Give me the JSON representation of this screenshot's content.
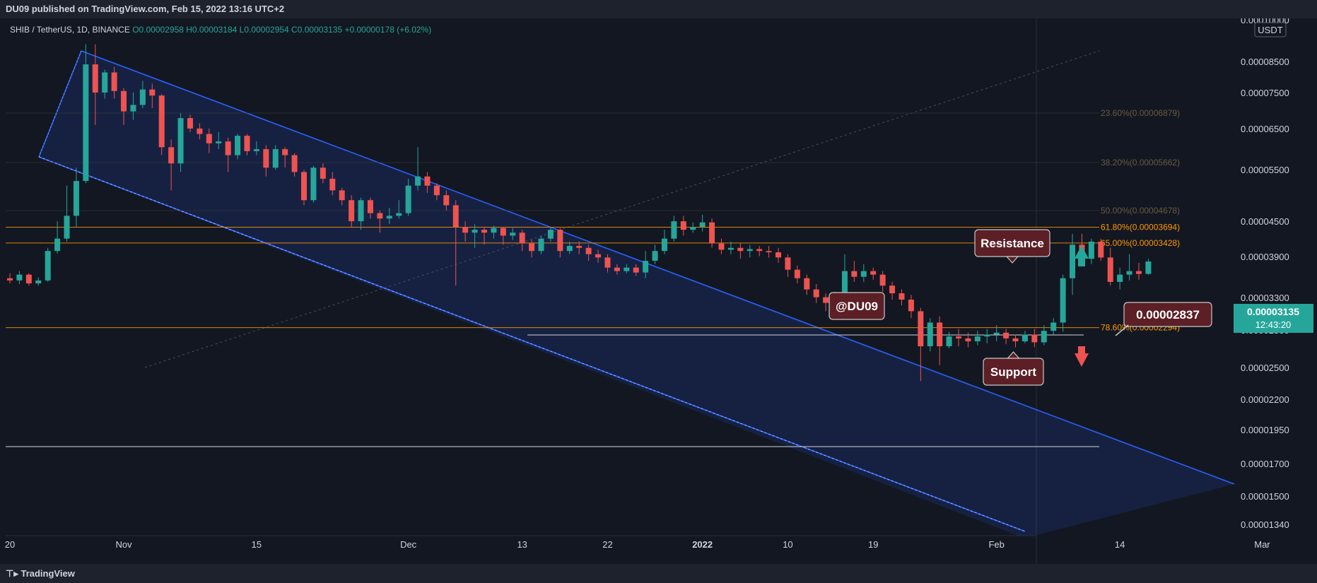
{
  "header": {
    "published": "DU09 published on TradingView.com, Feb 15, 2022 13:16 UTC+2"
  },
  "legend": {
    "symbol": "SHIB / TetherUS, 1D, BINANCE",
    "ohlc": "O0.00002958 H0.00003184 L0.00002954 C0.00003135 +0.00000178 (+6.02%)"
  },
  "footer": {
    "logo": "TradingView"
  },
  "annotations": {
    "resistance": "Resistance",
    "support": "Support",
    "author": "@DU09",
    "target_price": "0.00002837",
    "last_price": "0.00003135",
    "countdown": "12:43:20",
    "currency": "USDT"
  },
  "colors": {
    "background": "#131722",
    "up": "#26a69a",
    "down": "#ef5350",
    "channel": "#2962ff",
    "fib": "#ff9800",
    "label_fill": "#5c1f26"
  },
  "chart_data": {
    "type": "candlestick",
    "y_scale": "log",
    "y_ticks": [
      "0.00010000",
      "0.00008500",
      "0.00007500",
      "0.00006500",
      "0.00005500",
      "0.00004500",
      "0.00003900",
      "0.00003300",
      "0.00002800",
      "0.00002500",
      "0.00002200",
      "0.00001950",
      "0.00001700",
      "0.00001500",
      "0.00001340"
    ],
    "x_ticks": [
      {
        "date": "2021-10-20",
        "label": "20"
      },
      {
        "date": "2021-11-01",
        "label": "Nov"
      },
      {
        "date": "2021-11-15",
        "label": "15"
      },
      {
        "date": "2021-12-01",
        "label": "Dec"
      },
      {
        "date": "2021-12-13",
        "label": "13"
      },
      {
        "date": "2021-12-22",
        "label": "22"
      },
      {
        "date": "2022-01-01",
        "label": "2022"
      },
      {
        "date": "2022-01-10",
        "label": "10"
      },
      {
        "date": "2022-01-19",
        "label": "19"
      },
      {
        "date": "2022-02-01",
        "label": "Feb"
      },
      {
        "date": "2022-02-14",
        "label": "14"
      },
      {
        "date": "2022-03-01",
        "label": "Mar"
      }
    ],
    "fib_levels": [
      {
        "label": "23.60%(0.00006879)",
        "value": 6.879e-05
      },
      {
        "label": "38.20%(0.00005662)",
        "value": 5.662e-05
      },
      {
        "label": "50.00%(0.00004678)",
        "value": 4.678e-05
      },
      {
        "label": "61.80%(0.00003694)",
        "value": 3.694e-05
      },
      {
        "label": "65.00%(0.00003428)",
        "value": 3.428e-05
      },
      {
        "label": "78.60%(0.00002294)",
        "value": 2.294e-05
      }
    ],
    "ohlc": [
      [
        "2021-10-20",
        2.9e-05,
        2.87e-05,
        2.97e-05,
        2.83e-05
      ],
      [
        "2021-10-21",
        2.87e-05,
        2.95e-05,
        3e-05,
        2.82e-05
      ],
      [
        "2021-10-22",
        2.95e-05,
        2.83e-05,
        2.97e-05,
        2.8e-05
      ],
      [
        "2021-10-23",
        2.83e-05,
        2.87e-05,
        2.91e-05,
        2.8e-05
      ],
      [
        "2021-10-24",
        2.87e-05,
        3.3e-05,
        3.35e-05,
        2.85e-05
      ],
      [
        "2021-10-25",
        3.3e-05,
        3.5e-05,
        3.8e-05,
        3.26e-05
      ],
      [
        "2021-10-26",
        3.5e-05,
        3.9e-05,
        4.5e-05,
        3.45e-05
      ],
      [
        "2021-10-27",
        3.9e-05,
        4.6e-05,
        4.9e-05,
        3.7e-05
      ],
      [
        "2021-10-28",
        4.6e-05,
        8e-05,
        8.8e-05,
        4.55e-05
      ],
      [
        "2021-10-29",
        8e-05,
        7e-05,
        8.8e-05,
        6e-05
      ],
      [
        "2021-10-30",
        7e-05,
        7.7e-05,
        7.8e-05,
        6.8e-05
      ],
      [
        "2021-10-31",
        7.7e-05,
        7.05e-05,
        7.9e-05,
        6.8e-05
      ],
      [
        "2021-11-01",
        7.05e-05,
        6.4e-05,
        7.15e-05,
        6e-05
      ],
      [
        "2021-11-02",
        6.4e-05,
        6.6e-05,
        7e-05,
        6.15e-05
      ],
      [
        "2021-11-03",
        6.6e-05,
        7.1e-05,
        7.4e-05,
        6.5e-05
      ],
      [
        "2021-11-04",
        7.1e-05,
        6.9e-05,
        7.3e-05,
        6.5e-05
      ],
      [
        "2021-11-05",
        6.9e-05,
        5.4e-05,
        6.95e-05,
        5.2e-05
      ],
      [
        "2021-11-06",
        5.4e-05,
        5e-05,
        5.6e-05,
        4.4e-05
      ],
      [
        "2021-11-07",
        5e-05,
        6.2e-05,
        6.35e-05,
        4.8e-05
      ],
      [
        "2021-11-08",
        6.2e-05,
        5.9e-05,
        6.3e-05,
        5.8e-05
      ],
      [
        "2021-11-09",
        5.9e-05,
        5.75e-05,
        6.05e-05,
        5.6e-05
      ],
      [
        "2021-11-10",
        5.75e-05,
        5.5e-05,
        5.9e-05,
        5.25e-05
      ],
      [
        "2021-11-11",
        5.5e-05,
        5.55e-05,
        5.8e-05,
        5.35e-05
      ],
      [
        "2021-11-12",
        5.55e-05,
        5.2e-05,
        5.65e-05,
        4.8e-05
      ],
      [
        "2021-11-13",
        5.2e-05,
        5.7e-05,
        5.75e-05,
        5.1e-05
      ],
      [
        "2021-11-14",
        5.7e-05,
        5.3e-05,
        5.75e-05,
        5.2e-05
      ],
      [
        "2021-11-15",
        5.3e-05,
        5.35e-05,
        5.55e-05,
        5.2e-05
      ],
      [
        "2021-11-16",
        5.35e-05,
        4.9e-05,
        5.45e-05,
        4.7e-05
      ],
      [
        "2021-11-17",
        4.9e-05,
        5.35e-05,
        5.45e-05,
        4.85e-05
      ],
      [
        "2021-11-18",
        5.35e-05,
        5.2e-05,
        5.4e-05,
        4.9e-05
      ],
      [
        "2021-11-19",
        5.2e-05,
        4.8e-05,
        5.25e-05,
        4.7e-05
      ],
      [
        "2021-11-20",
        4.8e-05,
        4.2e-05,
        4.85e-05,
        4.1e-05
      ],
      [
        "2021-11-21",
        4.2e-05,
        4.9e-05,
        4.95e-05,
        4.15e-05
      ],
      [
        "2021-11-22",
        4.9e-05,
        4.65e-05,
        5e-05,
        4.55e-05
      ],
      [
        "2021-11-23",
        4.65e-05,
        4.4e-05,
        4.8e-05,
        4.3e-05
      ],
      [
        "2021-11-24",
        4.4e-05,
        4.2e-05,
        4.45e-05,
        4.1e-05
      ],
      [
        "2021-11-25",
        4.2e-05,
        3.8e-05,
        4.3e-05,
        3.7e-05
      ],
      [
        "2021-11-26",
        3.8e-05,
        4.2e-05,
        4.25e-05,
        3.65e-05
      ],
      [
        "2021-11-27",
        4.2e-05,
        3.95e-05,
        4.25e-05,
        3.85e-05
      ],
      [
        "2021-11-28",
        3.95e-05,
        3.85e-05,
        4e-05,
        3.6e-05
      ],
      [
        "2021-11-29",
        3.85e-05,
        3.9e-05,
        4.05e-05,
        3.75e-05
      ],
      [
        "2021-11-30",
        3.9e-05,
        3.95e-05,
        4.2e-05,
        3.85e-05
      ],
      [
        "2021-12-01",
        3.95e-05,
        4.5e-05,
        4.65e-05,
        3.9e-05
      ],
      [
        "2021-12-02",
        4.5e-05,
        4.7e-05,
        5.4e-05,
        4.4e-05
      ],
      [
        "2021-12-03",
        4.7e-05,
        4.5e-05,
        4.8e-05,
        4.35e-05
      ],
      [
        "2021-12-04",
        4.5e-05,
        4.3e-05,
        4.55e-05,
        4.2e-05
      ],
      [
        "2021-12-05",
        4.3e-05,
        4.1e-05,
        4.4e-05,
        4e-05
      ],
      [
        "2021-12-06",
        4.1e-05,
        3.7e-05,
        4.2e-05,
        2.8e-05
      ],
      [
        "2021-12-07",
        3.7e-05,
        3.6e-05,
        3.8e-05,
        3.45e-05
      ],
      [
        "2021-12-08",
        3.6e-05,
        3.65e-05,
        3.75e-05,
        3.35e-05
      ],
      [
        "2021-12-09",
        3.65e-05,
        3.6e-05,
        3.7e-05,
        3.4e-05
      ],
      [
        "2021-12-10",
        3.6e-05,
        3.68e-05,
        3.72e-05,
        3.5e-05
      ],
      [
        "2021-12-11",
        3.68e-05,
        3.55e-05,
        3.7e-05,
        3.4e-05
      ],
      [
        "2021-12-12",
        3.55e-05,
        3.6e-05,
        3.68e-05,
        3.48e-05
      ],
      [
        "2021-12-13",
        3.6e-05,
        3.42e-05,
        3.65e-05,
        3.3e-05
      ],
      [
        "2021-12-14",
        3.42e-05,
        3.3e-05,
        3.48e-05,
        3.2e-05
      ],
      [
        "2021-12-15",
        3.3e-05,
        3.5e-05,
        3.55e-05,
        3.25e-05
      ],
      [
        "2021-12-16",
        3.5e-05,
        3.65e-05,
        3.7e-05,
        3.45e-05
      ],
      [
        "2021-12-17",
        3.65e-05,
        3.3e-05,
        3.68e-05,
        3.2e-05
      ],
      [
        "2021-12-18",
        3.3e-05,
        3.38e-05,
        3.45e-05,
        3.25e-05
      ],
      [
        "2021-12-19",
        3.38e-05,
        3.35e-05,
        3.45e-05,
        3.25e-05
      ],
      [
        "2021-12-20",
        3.35e-05,
        3.25e-05,
        3.4e-05,
        3.15e-05
      ],
      [
        "2021-12-21",
        3.25e-05,
        3.2e-05,
        3.32e-05,
        3.12e-05
      ],
      [
        "2021-12-22",
        3.2e-05,
        3.05e-05,
        3.25e-05,
        2.98e-05
      ],
      [
        "2021-12-23",
        3.05e-05,
        3e-05,
        3.1e-05,
        2.95e-05
      ],
      [
        "2021-12-24",
        3e-05,
        3.05e-05,
        3.1e-05,
        2.97e-05
      ],
      [
        "2021-12-25",
        3.05e-05,
        2.98e-05,
        3.1e-05,
        2.93e-05
      ],
      [
        "2021-12-26",
        2.98e-05,
        3.15e-05,
        3.3e-05,
        2.9e-05
      ],
      [
        "2021-12-27",
        3.15e-05,
        3.3e-05,
        3.4e-05,
        3.1e-05
      ],
      [
        "2021-12-28",
        3.3e-05,
        3.5e-05,
        3.65e-05,
        3.25e-05
      ],
      [
        "2021-12-29",
        3.5e-05,
        3.8e-05,
        3.9e-05,
        3.45e-05
      ],
      [
        "2021-12-30",
        3.8e-05,
        3.65e-05,
        3.9e-05,
        3.55e-05
      ],
      [
        "2021-12-31",
        3.65e-05,
        3.7e-05,
        3.78e-05,
        3.6e-05
      ],
      [
        "2022-01-01",
        3.7e-05,
        3.78e-05,
        3.92e-05,
        3.62e-05
      ],
      [
        "2022-01-02",
        3.78e-05,
        3.42e-05,
        3.85e-05,
        3.35e-05
      ],
      [
        "2022-01-03",
        3.42e-05,
        3.32e-05,
        3.5e-05,
        3.25e-05
      ],
      [
        "2022-01-04",
        3.32e-05,
        3.35e-05,
        3.45e-05,
        3.25e-05
      ],
      [
        "2022-01-05",
        3.35e-05,
        3.3e-05,
        3.42e-05,
        3.18e-05
      ],
      [
        "2022-01-06",
        3.3e-05,
        3.33e-05,
        3.4e-05,
        3.2e-05
      ],
      [
        "2022-01-07",
        3.33e-05,
        3.3e-05,
        3.38e-05,
        3.22e-05
      ],
      [
        "2022-01-08",
        3.3e-05,
        3.28e-05,
        3.38e-05,
        3.2e-05
      ],
      [
        "2022-01-09",
        3.28e-05,
        3.2e-05,
        3.35e-05,
        3.12e-05
      ],
      [
        "2022-01-10",
        3.2e-05,
        3.02e-05,
        3.25e-05,
        2.92e-05
      ],
      [
        "2022-01-11",
        3.02e-05,
        2.9e-05,
        3.08e-05,
        2.83e-05
      ],
      [
        "2022-01-12",
        2.9e-05,
        2.75e-05,
        2.95e-05,
        2.68e-05
      ],
      [
        "2022-01-13",
        2.75e-05,
        2.65e-05,
        2.82e-05,
        2.58e-05
      ],
      [
        "2022-01-14",
        2.65e-05,
        2.58e-05,
        2.7e-05,
        2.48e-05
      ],
      [
        "2022-01-15",
        2.58e-05,
        2.65e-05,
        2.72e-05,
        2.52e-05
      ],
      [
        "2022-01-16",
        2.65e-05,
        3e-05,
        3.25e-05,
        2.62e-05
      ],
      [
        "2022-01-17",
        3e-05,
        2.92e-05,
        3.15e-05,
        2.85e-05
      ],
      [
        "2022-01-18",
        2.92e-05,
        3e-05,
        3.1e-05,
        2.85e-05
      ],
      [
        "2022-01-19",
        3e-05,
        2.95e-05,
        3.05e-05,
        2.88e-05
      ],
      [
        "2022-01-20",
        2.95e-05,
        2.8e-05,
        3e-05,
        2.72e-05
      ],
      [
        "2022-01-21",
        2.8e-05,
        2.7e-05,
        2.85e-05,
        2.62e-05
      ],
      [
        "2022-01-22",
        2.7e-05,
        2.62e-05,
        2.75e-05,
        2.55e-05
      ],
      [
        "2022-01-23",
        2.62e-05,
        2.48e-05,
        2.68e-05,
        2.4e-05
      ],
      [
        "2022-01-24",
        2.48e-05,
        2.1e-05,
        2.52e-05,
        1.78e-05
      ],
      [
        "2022-01-25",
        2.1e-05,
        2.35e-05,
        2.4e-05,
        2.05e-05
      ],
      [
        "2022-01-26",
        2.35e-05,
        2.1e-05,
        2.42e-05,
        1.92e-05
      ],
      [
        "2022-01-27",
        2.1e-05,
        2.2e-05,
        2.25e-05,
        2.08e-05
      ],
      [
        "2022-01-28",
        2.2e-05,
        2.18e-05,
        2.28e-05,
        2.1e-05
      ],
      [
        "2022-01-29",
        2.18e-05,
        2.15e-05,
        2.24e-05,
        2.09e-05
      ],
      [
        "2022-01-30",
        2.15e-05,
        2.2e-05,
        2.26e-05,
        2.11e-05
      ],
      [
        "2022-01-31",
        2.2e-05,
        2.22e-05,
        2.28e-05,
        2.13e-05
      ],
      [
        "2022-02-01",
        2.22e-05,
        2.24e-05,
        2.32e-05,
        2.15e-05
      ],
      [
        "2022-02-02",
        2.24e-05,
        2.18e-05,
        2.28e-05,
        2.12e-05
      ],
      [
        "2022-02-03",
        2.18e-05,
        2.15e-05,
        2.22e-05,
        2.09e-05
      ],
      [
        "2022-02-04",
        2.15e-05,
        2.22e-05,
        2.26e-05,
        2.13e-05
      ],
      [
        "2022-02-05",
        2.22e-05,
        2.14e-05,
        2.28e-05,
        2.09e-05
      ],
      [
        "2022-02-06",
        2.14e-05,
        2.26e-05,
        2.32e-05,
        2.11e-05
      ],
      [
        "2022-02-07",
        2.26e-05,
        2.35e-05,
        2.4e-05,
        2.22e-05
      ],
      [
        "2022-02-08",
        2.35e-05,
        2.9e-05,
        2.95e-05,
        2.25e-05
      ],
      [
        "2022-02-09",
        2.9e-05,
        3.4e-05,
        3.58e-05,
        2.68e-05
      ],
      [
        "2022-02-10",
        3.4e-05,
        3.18e-05,
        3.58e-05,
        3.1e-05
      ],
      [
        "2022-02-11",
        3.18e-05,
        3.45e-05,
        3.5e-05,
        3.1e-05
      ],
      [
        "2022-02-12",
        3.45e-05,
        3.2e-05,
        3.5e-05,
        3.15e-05
      ],
      [
        "2022-02-13",
        3.2e-05,
        2.85e-05,
        3.35e-05,
        2.8e-05
      ],
      [
        "2022-02-14",
        2.85e-05,
        2.95e-05,
        3.05e-05,
        2.75e-05
      ],
      [
        "2022-02-15",
        2.95e-05,
        3e-05,
        3.25e-05,
        2.87e-05
      ],
      [
        "2022-02-16",
        3e-05,
        2.96e-05,
        3.12e-05,
        2.88e-05
      ],
      [
        "2022-02-17",
        2.96e-05,
        3.14e-05,
        3.18e-05,
        2.95e-05
      ]
    ]
  }
}
